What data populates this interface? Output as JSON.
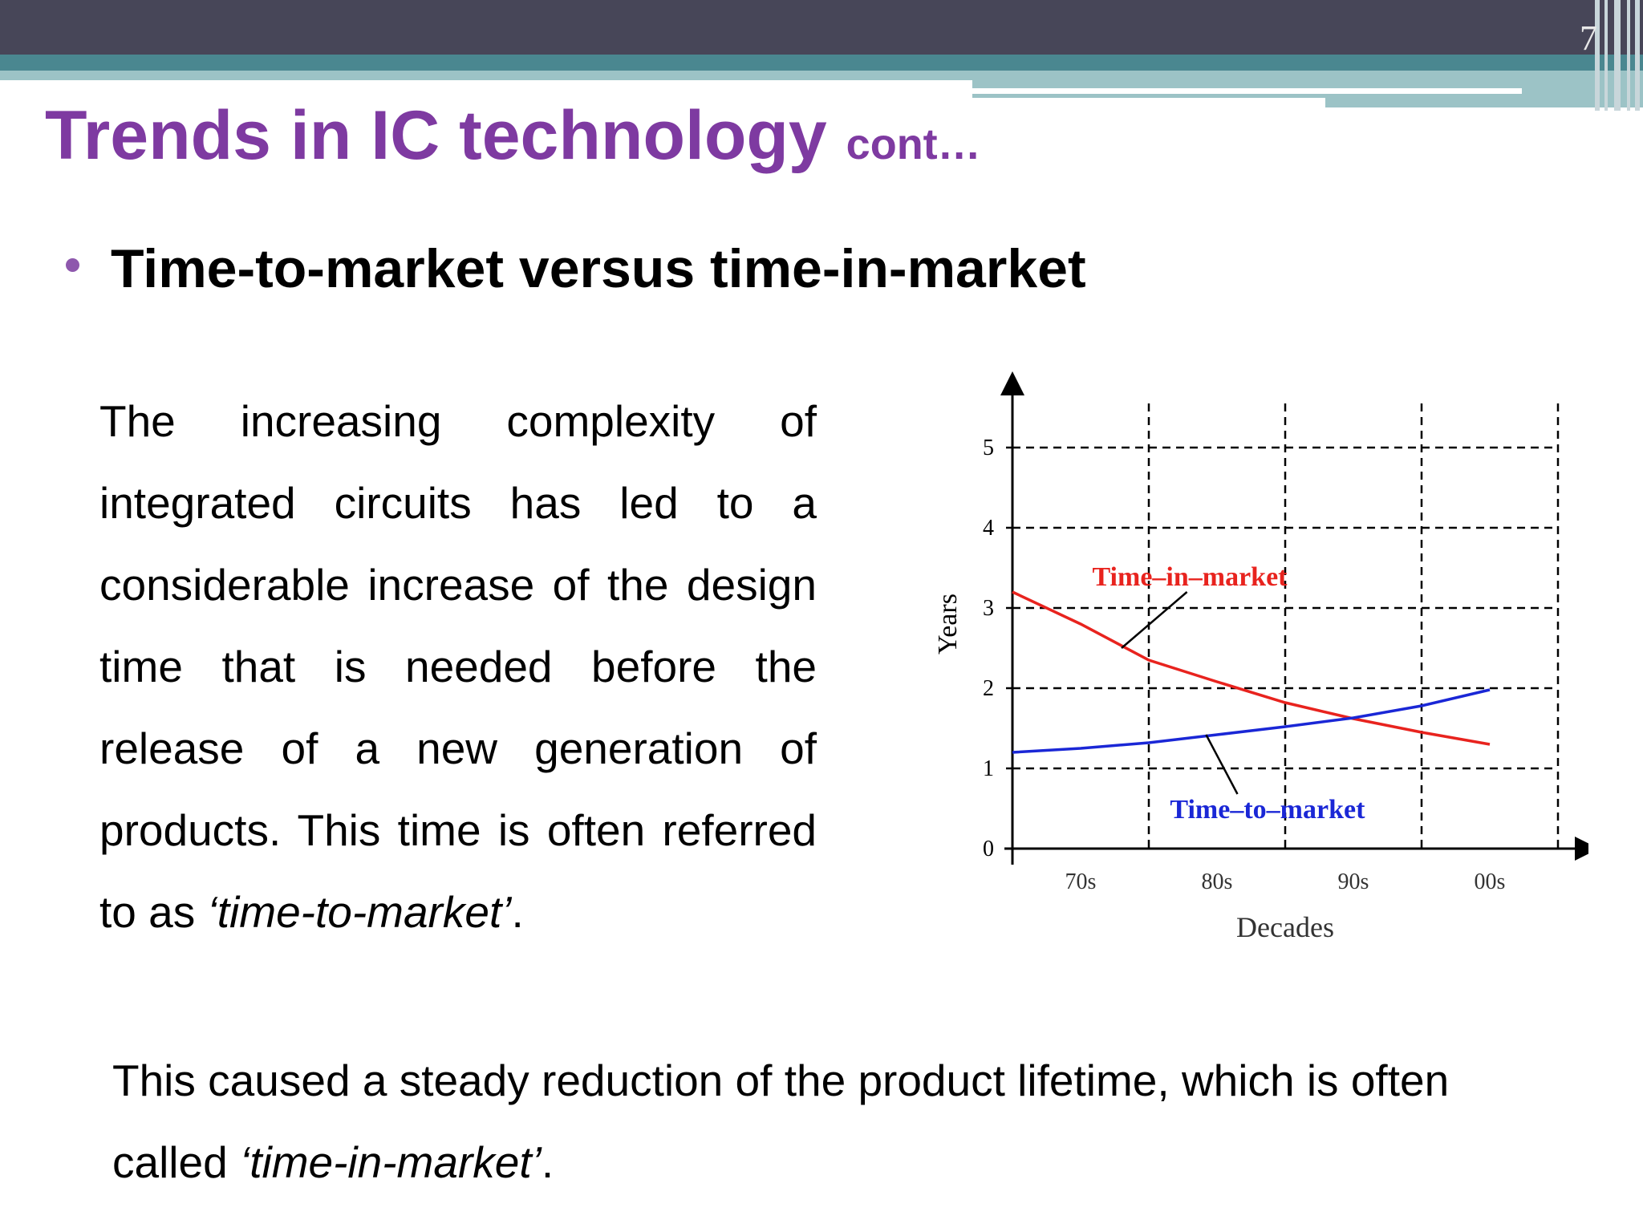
{
  "slide": {
    "number": "7",
    "title": "Trends in IC technology",
    "title_suffix": "cont…",
    "bullet": "Time-to-market versus time-in-market",
    "para1_text": "The increasing complexity of integrated circuits has led to a considerable increase of the design time that is needed before the release of a new generation of products. This time is often referred to as ",
    "para1_term": "‘time-to-market’",
    "para1_end": ".",
    "para2_text": "This caused a steady reduction of the product lifetime, which is often called ",
    "para2_term": "‘time-in-market’",
    "para2_end": "."
  },
  "colors": {
    "title": "#7e3aa1",
    "time_in_market": "#e8231e",
    "time_to_market": "#1a27d6"
  },
  "chart_data": {
    "type": "line",
    "xlabel": "Decades",
    "ylabel": "Years",
    "categories": [
      "70s",
      "80s",
      "90s",
      "00s"
    ],
    "xlim": [
      0,
      4
    ],
    "ylim": [
      0,
      5
    ],
    "yticks": [
      0,
      1,
      2,
      3,
      4,
      5
    ],
    "grid": true,
    "series": [
      {
        "name": "Time–in–market",
        "color": "#e8231e",
        "x": [
          0,
          0.5,
          1,
          1.5,
          2,
          2.5,
          3,
          3.5
        ],
        "y": [
          3.2,
          2.8,
          2.35,
          2.08,
          1.82,
          1.62,
          1.45,
          1.3
        ]
      },
      {
        "name": "Time–to–market",
        "color": "#1a27d6",
        "x": [
          0,
          0.5,
          1,
          1.5,
          2,
          2.5,
          3,
          3.5
        ],
        "y": [
          1.2,
          1.25,
          1.32,
          1.42,
          1.52,
          1.63,
          1.78,
          1.98
        ]
      }
    ]
  }
}
